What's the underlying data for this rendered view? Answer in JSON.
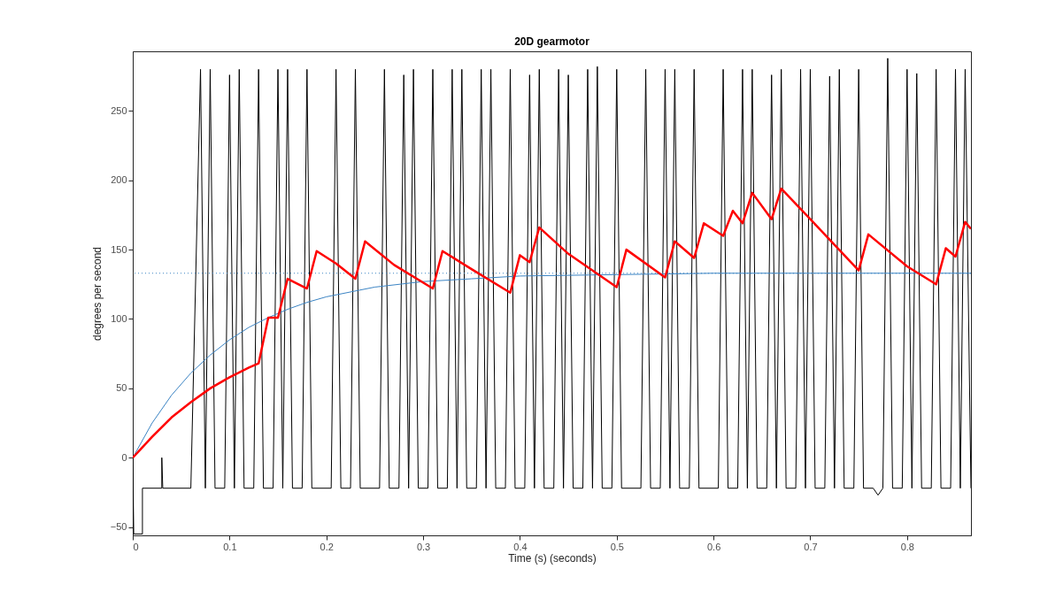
{
  "chart_data": {
    "type": "line",
    "title": "20D gearmotor",
    "xlabel": "Time (s) (seconds)",
    "ylabel": "degrees per second",
    "xlim": [
      0,
      0.866
    ],
    "xticks": [
      0,
      0.1,
      0.2,
      0.3,
      0.4,
      0.5,
      0.6,
      0.7,
      0.8
    ],
    "ylim": [
      -56,
      293
    ],
    "yticks": [
      -50,
      0,
      50,
      100,
      150,
      200,
      250
    ],
    "grid": false,
    "marker": "none",
    "line_style": "solid",
    "ref_lines": [
      {
        "axis": "y",
        "value": 133,
        "color": "#3b84c4",
        "line_style": "dotted"
      }
    ],
    "series": [
      {
        "color": "#000000",
        "x": [
          0,
          0.001,
          0.01,
          0.01,
          0.03,
          0.03,
          0.031,
          0.06,
          0.07,
          0.075,
          0.08,
          0.085,
          0.095,
          0.1,
          0.105,
          0.11,
          0.115,
          0.125,
          0.13,
          0.135,
          0.145,
          0.15,
          0.155,
          0.16,
          0.165,
          0.175,
          0.18,
          0.185,
          0.205,
          0.21,
          0.215,
          0.225,
          0.23,
          0.235,
          0.255,
          0.26,
          0.265,
          0.275,
          0.28,
          0.285,
          0.29,
          0.295,
          0.305,
          0.31,
          0.315,
          0.325,
          0.33,
          0.335,
          0.34,
          0.345,
          0.355,
          0.36,
          0.365,
          0.37,
          0.375,
          0.385,
          0.39,
          0.395,
          0.405,
          0.41,
          0.415,
          0.42,
          0.425,
          0.435,
          0.44,
          0.445,
          0.45,
          0.455,
          0.465,
          0.47,
          0.475,
          0.48,
          0.485,
          0.495,
          0.5,
          0.505,
          0.525,
          0.53,
          0.535,
          0.545,
          0.55,
          0.555,
          0.56,
          0.565,
          0.575,
          0.58,
          0.585,
          0.605,
          0.61,
          0.615,
          0.625,
          0.63,
          0.635,
          0.64,
          0.645,
          0.655,
          0.66,
          0.665,
          0.67,
          0.675,
          0.685,
          0.69,
          0.695,
          0.7,
          0.705,
          0.715,
          0.72,
          0.725,
          0.73,
          0.735,
          0.745,
          0.75,
          0.755,
          0.765,
          0.77,
          0.775,
          0.78,
          0.785,
          0.795,
          0.8,
          0.805,
          0.81,
          0.815,
          0.825,
          0.83,
          0.835,
          0.845,
          0.85,
          0.855,
          0.86,
          0.866
        ],
        "values": [
          0,
          -55,
          -55,
          -22,
          -22,
          0,
          -22,
          -22,
          280,
          -22,
          280,
          -22,
          -22,
          276,
          -22,
          280,
          -22,
          -22,
          280,
          -22,
          -22,
          280,
          -22,
          280,
          -22,
          -22,
          280,
          -22,
          -22,
          280,
          -22,
          -22,
          280,
          -22,
          -22,
          280,
          -22,
          -22,
          276,
          -22,
          280,
          -22,
          -22,
          280,
          -22,
          -22,
          280,
          -22,
          280,
          -22,
          -22,
          280,
          -22,
          280,
          -22,
          -22,
          280,
          -22,
          -22,
          276,
          -22,
          280,
          -22,
          -22,
          280,
          -22,
          276,
          -22,
          -22,
          280,
          -22,
          282,
          -22,
          -22,
          280,
          -22,
          -22,
          280,
          -22,
          -22,
          280,
          -22,
          280,
          -22,
          -22,
          280,
          -22,
          -22,
          280,
          -22,
          -22,
          280,
          -22,
          280,
          -22,
          -22,
          276,
          -22,
          280,
          -22,
          -22,
          280,
          -22,
          280,
          -22,
          -22,
          275,
          -22,
          280,
          -22,
          -22,
          280,
          -22,
          -22,
          -27,
          -22,
          288,
          -22,
          -22,
          280,
          -22,
          277,
          -22,
          -22,
          280,
          -22,
          -22,
          280,
          -22,
          280,
          -22
        ]
      },
      {
        "color": "#3b84c4",
        "x": [
          0,
          0.02,
          0.04,
          0.06,
          0.08,
          0.1,
          0.12,
          0.14,
          0.16,
          0.18,
          0.2,
          0.25,
          0.3,
          0.35,
          0.4,
          0.5,
          0.6,
          0.7,
          0.866
        ],
        "values": [
          0,
          25,
          45,
          61,
          74,
          85,
          94,
          101,
          107,
          112,
          116,
          123,
          127,
          129,
          131,
          132,
          133,
          133,
          133
        ]
      },
      {
        "color": "#ff0000",
        "x": [
          0,
          0.02,
          0.04,
          0.06,
          0.08,
          0.1,
          0.12,
          0.13,
          0.14,
          0.15,
          0.16,
          0.18,
          0.19,
          0.21,
          0.23,
          0.24,
          0.27,
          0.31,
          0.32,
          0.35,
          0.39,
          0.4,
          0.41,
          0.42,
          0.45,
          0.5,
          0.51,
          0.55,
          0.56,
          0.58,
          0.59,
          0.61,
          0.62,
          0.63,
          0.64,
          0.66,
          0.67,
          0.7,
          0.75,
          0.76,
          0.8,
          0.83,
          0.84,
          0.85,
          0.86,
          0.866
        ],
        "values": [
          0,
          15,
          29,
          40,
          50,
          58,
          65,
          68,
          101,
          101,
          129,
          122,
          149,
          140,
          129,
          156,
          139,
          122,
          149,
          136,
          119,
          146,
          141,
          166,
          147,
          123,
          150,
          130,
          156,
          144,
          169,
          160,
          178,
          169,
          191,
          172,
          194,
          172,
          135,
          161,
          138,
          125,
          151,
          145,
          170,
          165
        ]
      }
    ]
  }
}
